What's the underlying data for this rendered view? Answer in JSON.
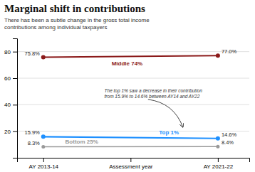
{
  "chart_data": {
    "type": "line",
    "title": "Marginal shift in contributions",
    "subtitle": "There has been a subtle change in the gross total income\ncontributions among individual taxpayers",
    "annotation": "The top 1% saw a decrease in their contribution\nfrom 15.9% to 14.6% between AY14 and AY22",
    "x": [
      0,
      1
    ],
    "xlim": [
      -0.15,
      1.18
    ],
    "xticks": [
      {
        "value": 0,
        "label": "AY 2013-14"
      },
      {
        "value": 0.5,
        "label": "Assessment year"
      },
      {
        "value": 1,
        "label": "AY 2021-22"
      }
    ],
    "ylim": [
      0,
      90
    ],
    "yticks": [
      20,
      40,
      60,
      80
    ],
    "grid": true,
    "data_labels": true,
    "series": [
      {
        "name": "Middle 74%",
        "color": "#8B1A1A",
        "marker": "circle",
        "values": [
          75.8,
          77.0
        ],
        "value_labels": [
          "75.8%",
          "77.0%"
        ]
      },
      {
        "name": "Top 1%",
        "color": "#1E90FF",
        "marker": "circle",
        "values": [
          15.9,
          14.6
        ],
        "value_labels": [
          "15.9%",
          "14.6%"
        ]
      },
      {
        "name": "Bottom 25%",
        "color": "#999999",
        "marker": "circle",
        "values": [
          8.3,
          8.4
        ],
        "value_labels": [
          "8.3%",
          "8.4%"
        ]
      }
    ]
  }
}
